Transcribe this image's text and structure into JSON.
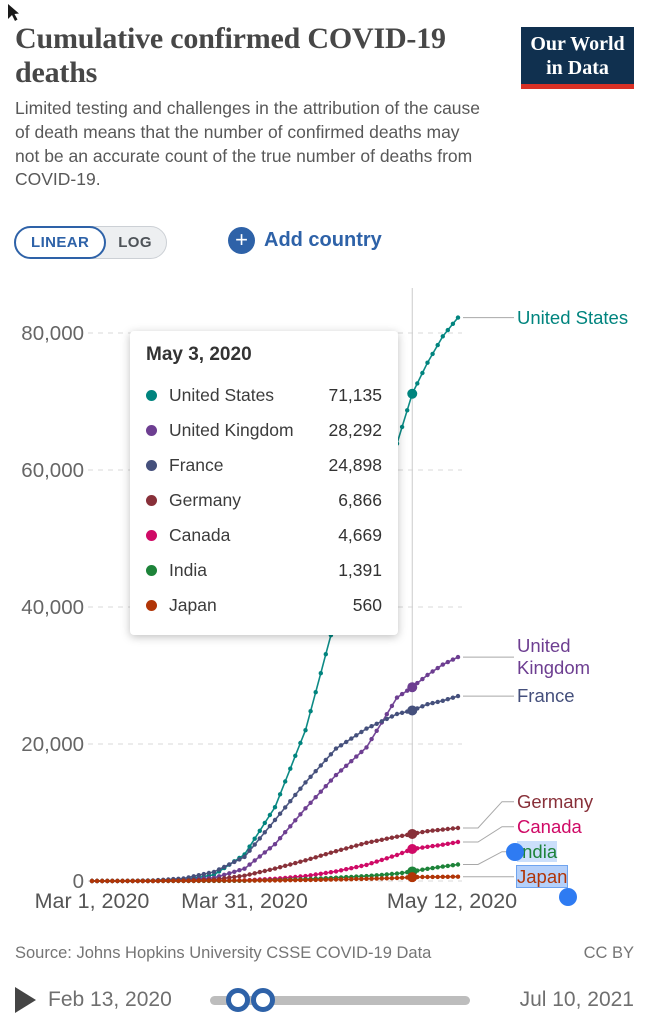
{
  "header": {
    "title": "Cumulative confirmed COVID-19 deaths",
    "subtitle": "Limited testing and challenges in the attribution of the cause of death means that the number of confirmed deaths may not be an accurate count of the true number of deaths from COVID-19.",
    "logo_line1": "Our World",
    "logo_line2": "in Data"
  },
  "controls": {
    "linear_label": "LINEAR",
    "log_label": "LOG",
    "add_icon": "+",
    "add_country_label": "Add country"
  },
  "tooltip": {
    "date": "May 3, 2020",
    "rows": [
      {
        "name": "United States",
        "value": "71,135",
        "color": "#00847e"
      },
      {
        "name": "United Kingdom",
        "value": "28,292",
        "color": "#6d3e91"
      },
      {
        "name": "France",
        "value": "24,898",
        "color": "#45507c"
      },
      {
        "name": "Germany",
        "value": "6,866",
        "color": "#883039"
      },
      {
        "name": "Canada",
        "value": "4,669",
        "color": "#cf0a66"
      },
      {
        "name": "India",
        "value": "1,391",
        "color": "#1d8339"
      },
      {
        "name": "Japan",
        "value": "560",
        "color": "#b13507"
      }
    ]
  },
  "chart_data": {
    "type": "line",
    "title": "Cumulative confirmed COVID-19 deaths",
    "x_axis": {
      "unit": "date",
      "start": "Mar 1, 2020",
      "end": "May 12, 2020",
      "ticks": [
        {
          "label": "Mar 1, 2020",
          "day": 0
        },
        {
          "label": "Mar 31, 2020",
          "day": 30
        },
        {
          "label": "May 12, 2020",
          "day": 72
        }
      ]
    },
    "y_axis": {
      "ticks": [
        0,
        20000,
        40000,
        60000,
        80000
      ],
      "tick_labels": [
        "0",
        "20,000",
        "40,000",
        "60,000",
        "80,000"
      ],
      "ylim": [
        0,
        87000
      ],
      "grid": "dashed"
    },
    "hover": {
      "date": "May 3, 2020",
      "day": 63
    },
    "selection": {
      "light": [
        "India"
      ],
      "strong": [
        "Japan"
      ]
    },
    "series": [
      {
        "name": "United States",
        "color": "#00847e",
        "label_lines": [
          "United States"
        ],
        "points": [
          [
            0,
            1
          ],
          [
            6,
            19
          ],
          [
            12,
            47
          ],
          [
            18,
            160
          ],
          [
            24,
            900
          ],
          [
            30,
            3870
          ],
          [
            36,
            10780
          ],
          [
            42,
            22020
          ],
          [
            48,
            38660
          ],
          [
            54,
            51950
          ],
          [
            60,
            63860
          ],
          [
            63,
            71135
          ],
          [
            66,
            75670
          ],
          [
            69,
            79520
          ],
          [
            72,
            82250
          ]
        ]
      },
      {
        "name": "United Kingdom",
        "color": "#6d3e91",
        "label_lines": [
          "United",
          "Kingdom"
        ],
        "points": [
          [
            0,
            0
          ],
          [
            6,
            2
          ],
          [
            12,
            8
          ],
          [
            18,
            144
          ],
          [
            24,
            465
          ],
          [
            30,
            1793
          ],
          [
            36,
            5373
          ],
          [
            42,
            10612
          ],
          [
            48,
            15464
          ],
          [
            54,
            19506
          ],
          [
            60,
            26771
          ],
          [
            63,
            28292
          ],
          [
            66,
            30076
          ],
          [
            69,
            31587
          ],
          [
            72,
            32692
          ]
        ]
      },
      {
        "name": "France",
        "color": "#45507c",
        "label_lines": [
          "France"
        ],
        "points": [
          [
            0,
            2
          ],
          [
            6,
            11
          ],
          [
            12,
            79
          ],
          [
            18,
            372
          ],
          [
            24,
            1331
          ],
          [
            30,
            3523
          ],
          [
            36,
            8911
          ],
          [
            42,
            14393
          ],
          [
            48,
            19323
          ],
          [
            54,
            22245
          ],
          [
            60,
            24376
          ],
          [
            63,
            24898
          ],
          [
            66,
            25809
          ],
          [
            69,
            26310
          ],
          [
            72,
            26991
          ]
        ]
      },
      {
        "name": "Germany",
        "color": "#883039",
        "label_lines": [
          "Germany"
        ],
        "points": [
          [
            0,
            0
          ],
          [
            6,
            0
          ],
          [
            12,
            7
          ],
          [
            18,
            67
          ],
          [
            24,
            206
          ],
          [
            30,
            775
          ],
          [
            36,
            1810
          ],
          [
            42,
            3022
          ],
          [
            48,
            4352
          ],
          [
            54,
            5575
          ],
          [
            60,
            6467
          ],
          [
            63,
            6866
          ],
          [
            66,
            7275
          ],
          [
            69,
            7510
          ],
          [
            72,
            7738
          ]
        ]
      },
      {
        "name": "Canada",
        "color": "#cf0a66",
        "label_lines": [
          "Canada"
        ],
        "points": [
          [
            0,
            0
          ],
          [
            6,
            0
          ],
          [
            12,
            1
          ],
          [
            18,
            12
          ],
          [
            24,
            35
          ],
          [
            30,
            101
          ],
          [
            36,
            323
          ],
          [
            42,
            717
          ],
          [
            48,
            1399
          ],
          [
            54,
            2350
          ],
          [
            60,
            3800
          ],
          [
            63,
            4669
          ],
          [
            66,
            4990
          ],
          [
            69,
            5300
          ],
          [
            72,
            5700
          ]
        ]
      },
      {
        "name": "India",
        "color": "#1d8339",
        "label_lines": [
          "India"
        ],
        "points": [
          [
            0,
            0
          ],
          [
            6,
            0
          ],
          [
            12,
            1
          ],
          [
            18,
            4
          ],
          [
            24,
            10
          ],
          [
            30,
            35
          ],
          [
            36,
            136
          ],
          [
            42,
            273
          ],
          [
            48,
            486
          ],
          [
            54,
            721
          ],
          [
            60,
            1074
          ],
          [
            63,
            1391
          ],
          [
            66,
            1785
          ],
          [
            69,
            2101
          ],
          [
            72,
            2415
          ]
        ]
      },
      {
        "name": "Japan",
        "color": "#b13507",
        "label_lines": [
          "Japan"
        ],
        "points": [
          [
            0,
            5
          ],
          [
            6,
            6
          ],
          [
            12,
            19
          ],
          [
            18,
            29
          ],
          [
            24,
            43
          ],
          [
            30,
            56
          ],
          [
            36,
            85
          ],
          [
            42,
            136
          ],
          [
            48,
            222
          ],
          [
            54,
            317
          ],
          [
            60,
            432
          ],
          [
            63,
            560
          ],
          [
            66,
            590
          ],
          [
            69,
            613
          ],
          [
            72,
            633
          ]
        ]
      }
    ]
  },
  "footer": {
    "source": "Source: Johns Hopkins University CSSE COVID-19 Data",
    "license": "CC BY"
  },
  "timeline": {
    "start": "Feb 13, 2020",
    "end": "Jul 10, 2021"
  }
}
